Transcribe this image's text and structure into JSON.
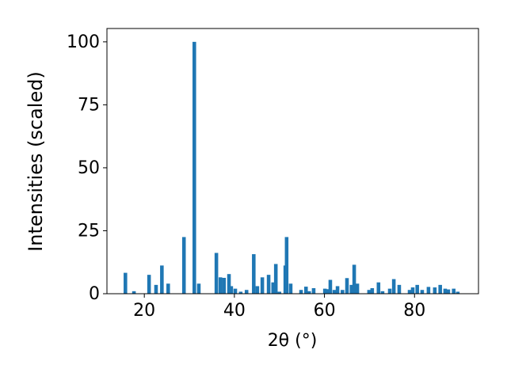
{
  "chart_data": {
    "type": "bar",
    "x_label": "2θ (°)",
    "y_label": "Intensities (scaled)",
    "color": "#1f77b4",
    "bar_width": 0.8,
    "x": [
      15.8,
      17.7,
      21.05,
      22.6,
      23.9,
      25.3,
      28.8,
      31.1,
      32.1,
      36.0,
      36.9,
      37.7,
      38.8,
      39.3,
      40.2,
      41.4,
      42.7,
      44.3,
      45.1,
      46.2,
      47.6,
      48.6,
      49.2,
      50.0,
      51.3,
      51.6,
      52.5,
      54.8,
      55.9,
      56.6,
      57.6,
      60.1,
      60.8,
      61.3,
      62.2,
      62.9,
      64.0,
      65.0,
      66.0,
      66.6,
      67.3,
      69.9,
      70.6,
      72.0,
      72.9,
      74.5,
      75.4,
      76.6,
      78.9,
      79.6,
      80.6,
      81.7,
      83.1,
      84.5,
      85.7,
      86.8,
      87.5,
      88.7,
      89.6
    ],
    "values": [
      8.3,
      1,
      7.5,
      3.5,
      11.2,
      4,
      22.5,
      100,
      4,
      16.2,
      6.5,
      6.3,
      7.8,
      3,
      2,
      0.8,
      1.5,
      15.7,
      3,
      6.5,
      7.5,
      4.5,
      11.8,
      0.8,
      11.2,
      22.5,
      4,
      1.5,
      2.8,
      1,
      2.2,
      2,
      1.8,
      5.5,
      1.5,
      3,
      1.5,
      6.2,
      3.5,
      11.5,
      4,
      1.5,
      2.2,
      4.5,
      1,
      2,
      5.8,
      3.5,
      1.5,
      2.5,
      3.5,
      1.5,
      2.7,
      2.5,
      3.5,
      2,
      1.7,
      2,
      0.8
    ],
    "xlim": [
      11.7,
      94.2
    ],
    "ylim": [
      0,
      105.3
    ],
    "xticks": [
      20,
      40,
      60,
      80
    ],
    "yticks": [
      0,
      25,
      50,
      75,
      100
    ],
    "grid": false
  }
}
